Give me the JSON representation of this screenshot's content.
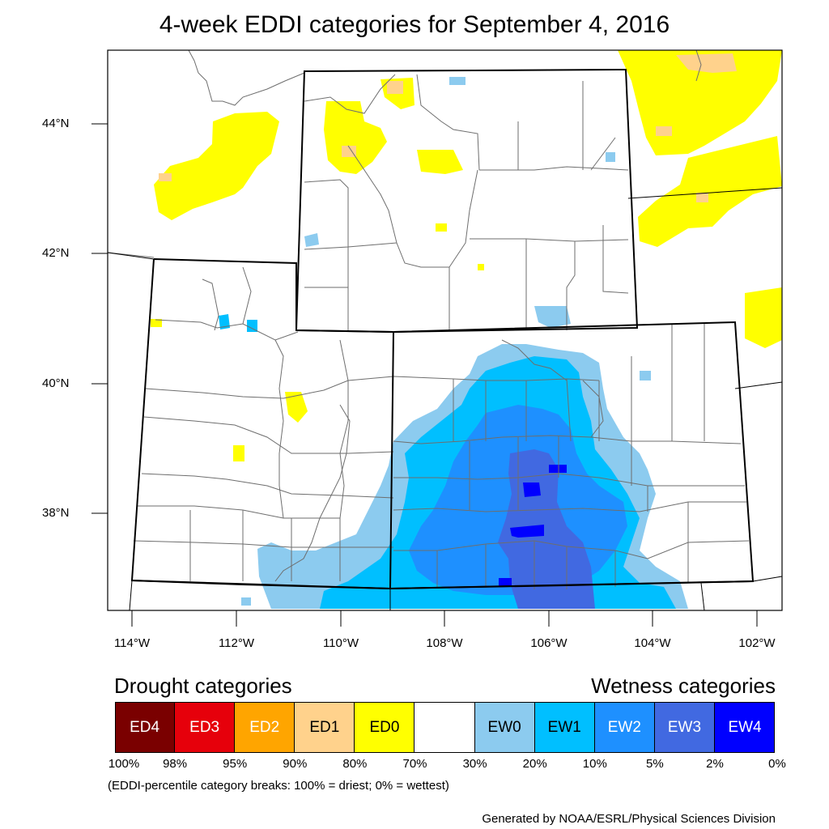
{
  "title": "4-week EDDI categories for September 4, 2016",
  "lat_labels": [
    "44°N",
    "42°N",
    "40°N",
    "38°N"
  ],
  "lon_labels": [
    "114°W",
    "112°W",
    "110°W",
    "108°W",
    "106°W",
    "104°W",
    "102°W"
  ],
  "legend": {
    "drought_heading": "Drought categories",
    "wetness_heading": "Wetness categories",
    "categories": [
      {
        "label": "ED4",
        "color": "#7a0000",
        "text_color": "#ffffff"
      },
      {
        "label": "ED3",
        "color": "#e6000b",
        "text_color": "#ffffff"
      },
      {
        "label": "ED2",
        "color": "#ffa500",
        "text_color": "#ffffff"
      },
      {
        "label": "ED1",
        "color": "#ffd28c",
        "text_color": "#000000"
      },
      {
        "label": "ED0",
        "color": "#ffff00",
        "text_color": "#000000"
      },
      {
        "label": "",
        "color": "#ffffff",
        "text_color": "#000000"
      },
      {
        "label": "EW0",
        "color": "#8ccbef",
        "text_color": "#000000"
      },
      {
        "label": "EW1",
        "color": "#00bfff",
        "text_color": "#000000"
      },
      {
        "label": "EW2",
        "color": "#1e90ff",
        "text_color": "#ffffff"
      },
      {
        "label": "EW3",
        "color": "#4169e1",
        "text_color": "#ffffff"
      },
      {
        "label": "EW4",
        "color": "#0000ff",
        "text_color": "#ffffff"
      }
    ],
    "breaks": [
      "100%",
      "98%",
      "95%",
      "90%",
      "80%",
      "70%",
      "30%",
      "20%",
      "10%",
      "5%",
      "2%",
      "0%"
    ],
    "note": "(EDDI-percentile category breaks: 100% = driest; 0% = wettest)"
  },
  "credit": "Generated by NOAA/ESRL/Physical Sciences Division"
}
